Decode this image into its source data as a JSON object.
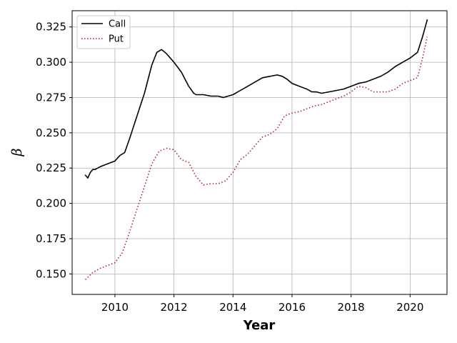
{
  "chart_data": {
    "type": "line",
    "title": "",
    "xlabel": "Year",
    "ylabel": "β",
    "xlim": [
      2008.55,
      2021.25
    ],
    "ylim": [
      0.1355,
      0.3365
    ],
    "x_ticks": [
      2010,
      2012,
      2014,
      2016,
      2018,
      2020
    ],
    "x_tick_labels": [
      "2010",
      "2012",
      "2014",
      "2016",
      "2018",
      "2020"
    ],
    "y_ticks": [
      0.15,
      0.175,
      0.2,
      0.225,
      0.25,
      0.275,
      0.3,
      0.325
    ],
    "y_tick_labels": [
      "0.150",
      "0.175",
      "0.200",
      "0.225",
      "0.250",
      "0.275",
      "0.300",
      "0.325"
    ],
    "grid": true,
    "legend_position": "top-left",
    "series": [
      {
        "name": "Call",
        "color": "#000000",
        "style": "solid",
        "x": [
          2009.0,
          2009.08,
          2009.17,
          2009.25,
          2009.33,
          2009.5,
          2009.75,
          2010.0,
          2010.17,
          2010.33,
          2010.5,
          2010.75,
          2011.0,
          2011.25,
          2011.42,
          2011.58,
          2011.75,
          2012.0,
          2012.25,
          2012.5,
          2012.67,
          2012.75,
          2013.0,
          2013.25,
          2013.5,
          2013.67,
          2013.83,
          2014.0,
          2014.25,
          2014.5,
          2014.75,
          2015.0,
          2015.25,
          2015.5,
          2015.67,
          2015.83,
          2016.0,
          2016.25,
          2016.5,
          2016.67,
          2016.83,
          2017.0,
          2017.25,
          2017.5,
          2017.75,
          2018.0,
          2018.25,
          2018.5,
          2018.75,
          2019.0,
          2019.25,
          2019.5,
          2019.75,
          2020.0,
          2020.25,
          2020.42,
          2020.58
        ],
        "y": [
          0.22,
          0.218,
          0.222,
          0.224,
          0.224,
          0.226,
          0.228,
          0.23,
          0.234,
          0.236,
          0.246,
          0.262,
          0.278,
          0.298,
          0.307,
          0.309,
          0.306,
          0.3,
          0.293,
          0.283,
          0.278,
          0.277,
          0.277,
          0.276,
          0.276,
          0.275,
          0.276,
          0.277,
          0.28,
          0.283,
          0.286,
          0.289,
          0.29,
          0.291,
          0.29,
          0.288,
          0.285,
          0.283,
          0.281,
          0.279,
          0.279,
          0.278,
          0.279,
          0.28,
          0.281,
          0.283,
          0.285,
          0.286,
          0.288,
          0.29,
          0.293,
          0.297,
          0.3,
          0.303,
          0.307,
          0.318,
          0.33
        ]
      },
      {
        "name": "Put",
        "color": "#b22222",
        "style": "dotted",
        "x": [
          2009.0,
          2009.25,
          2009.5,
          2009.75,
          2010.0,
          2010.25,
          2010.5,
          2010.75,
          2011.0,
          2011.25,
          2011.5,
          2011.75,
          2012.0,
          2012.25,
          2012.5,
          2012.75,
          2013.0,
          2013.25,
          2013.5,
          2013.75,
          2014.0,
          2014.25,
          2014.5,
          2014.75,
          2015.0,
          2015.25,
          2015.5,
          2015.75,
          2016.0,
          2016.25,
          2016.5,
          2016.75,
          2017.0,
          2017.25,
          2017.5,
          2017.75,
          2018.0,
          2018.25,
          2018.5,
          2018.75,
          2019.0,
          2019.25,
          2019.5,
          2019.75,
          2020.0,
          2020.25,
          2020.42,
          2020.58
        ],
        "y": [
          0.146,
          0.151,
          0.154,
          0.156,
          0.158,
          0.165,
          0.18,
          0.196,
          0.212,
          0.228,
          0.237,
          0.239,
          0.238,
          0.231,
          0.229,
          0.219,
          0.213,
          0.214,
          0.214,
          0.216,
          0.222,
          0.231,
          0.235,
          0.241,
          0.247,
          0.249,
          0.253,
          0.262,
          0.264,
          0.265,
          0.267,
          0.269,
          0.27,
          0.272,
          0.274,
          0.276,
          0.279,
          0.283,
          0.282,
          0.279,
          0.279,
          0.279,
          0.281,
          0.285,
          0.287,
          0.289,
          0.303,
          0.318
        ]
      }
    ]
  }
}
